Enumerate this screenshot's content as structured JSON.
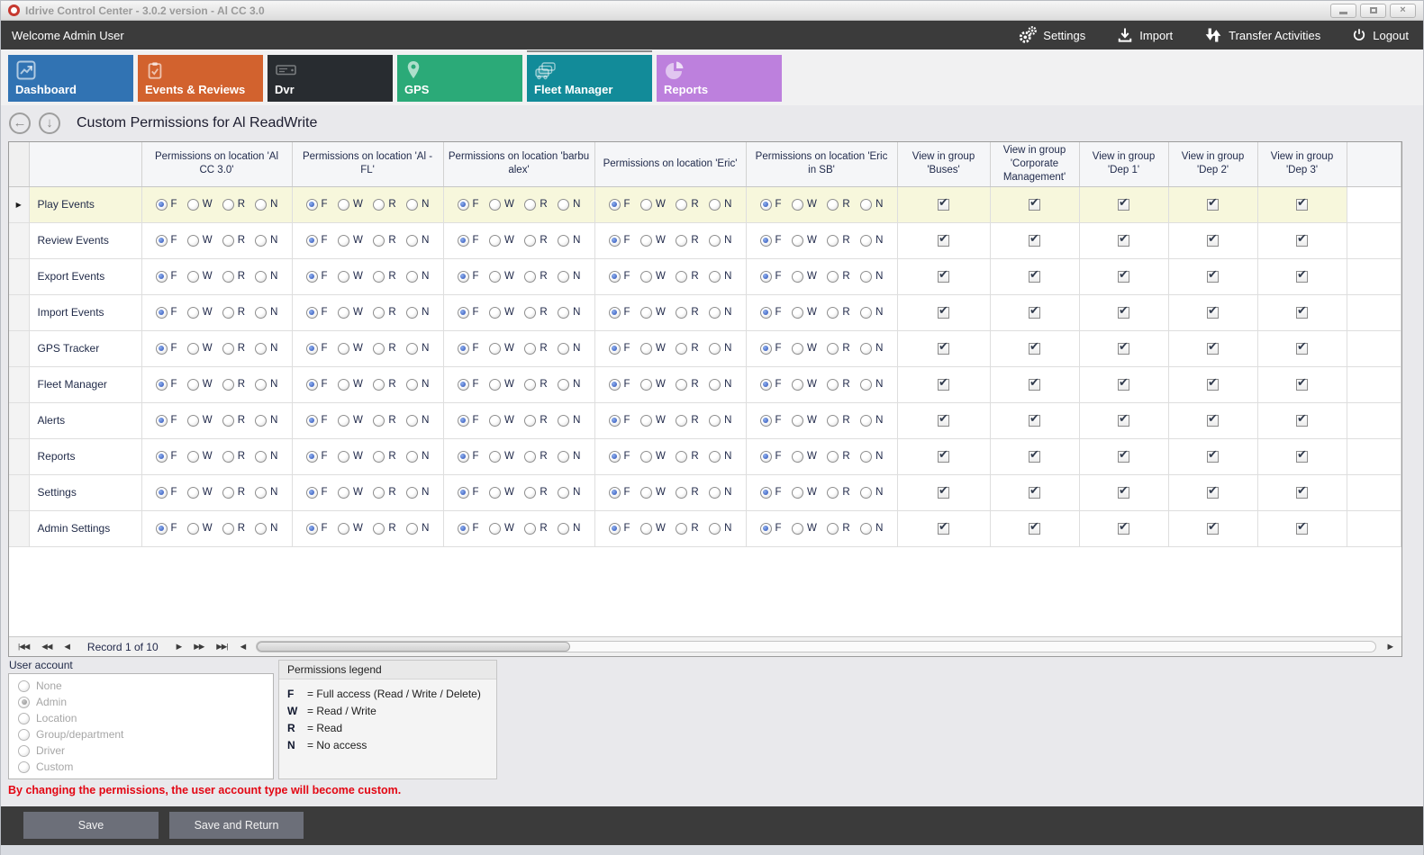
{
  "window": {
    "title": "Idrive Control Center - 3.0.2 version - Al CC 3.0"
  },
  "topbar": {
    "welcome": "Welcome Admin User",
    "actions": [
      {
        "label": "Settings",
        "icon": "gears-icon"
      },
      {
        "label": "Import",
        "icon": "download-icon"
      },
      {
        "label": "Transfer Activities",
        "icon": "transfer-arrows-icon"
      },
      {
        "label": "Logout",
        "icon": "power-icon"
      }
    ]
  },
  "tabs": {
    "selected_index": 4,
    "items": [
      {
        "label": "Dashboard",
        "color": "#3173b3",
        "icon": "line-chart-icon"
      },
      {
        "label": "Events & Reviews",
        "color": "#d2622e",
        "icon": "clipboard-check-icon"
      },
      {
        "label": "Dvr",
        "color": "#282c30",
        "icon": "dvr-device-icon"
      },
      {
        "label": "GPS",
        "color": "#2baa78",
        "icon": "map-pin-icon"
      },
      {
        "label": "Fleet Manager",
        "color": "#128b99",
        "icon": "fleet-vehicles-icon"
      },
      {
        "label": "Reports",
        "color": "#bd80dd",
        "icon": "pie-chart-icon"
      }
    ]
  },
  "page": {
    "title": "Custom Permissions for Al ReadWrite"
  },
  "grid": {
    "location_columns": [
      "Permissions on location 'Al CC 3.0'",
      "Permissions on location 'Al - FL'",
      "Permissions on location 'barbu alex'",
      "Permissions on location 'Eric'",
      "Permissions on location 'Eric in SB'"
    ],
    "group_columns": [
      "View in group 'Buses'",
      "View in group 'Corporate Management'",
      "View in group 'Dep 1'",
      "View in group 'Dep 2'",
      "View in group 'Dep 3'"
    ],
    "radio_options": [
      "F",
      "W",
      "R",
      "N"
    ],
    "selected_option": "F",
    "rows": [
      "Play Events",
      "Review Events",
      "Export Events",
      "Import Events",
      "GPS Tracker",
      "Fleet Manager",
      "Alerts",
      "Reports",
      "Settings",
      "Admin Settings"
    ],
    "active_row_index": 0,
    "checkboxes_checked": true
  },
  "navigator": {
    "record_text": "Record 1 of 10"
  },
  "user_account": {
    "label": "User account",
    "options": [
      {
        "label": "None",
        "selected": false
      },
      {
        "label": "Admin",
        "selected": true
      },
      {
        "label": "Location",
        "selected": false
      },
      {
        "label": "Group/department",
        "selected": false
      },
      {
        "label": "Driver",
        "selected": false
      },
      {
        "label": "Custom",
        "selected": false
      }
    ]
  },
  "legend": {
    "title": "Permissions legend",
    "entries": [
      {
        "key": "F",
        "text": "= Full access (Read / Write / Delete)"
      },
      {
        "key": "W",
        "text": "= Read / Write"
      },
      {
        "key": "R",
        "text": "= Read"
      },
      {
        "key": "N",
        "text": "= No access"
      }
    ]
  },
  "warning": "By changing the permissions, the user account type will become custom.",
  "warning_color": "#e30613",
  "footer": {
    "buttons": [
      "Save",
      "Save and Return"
    ]
  }
}
